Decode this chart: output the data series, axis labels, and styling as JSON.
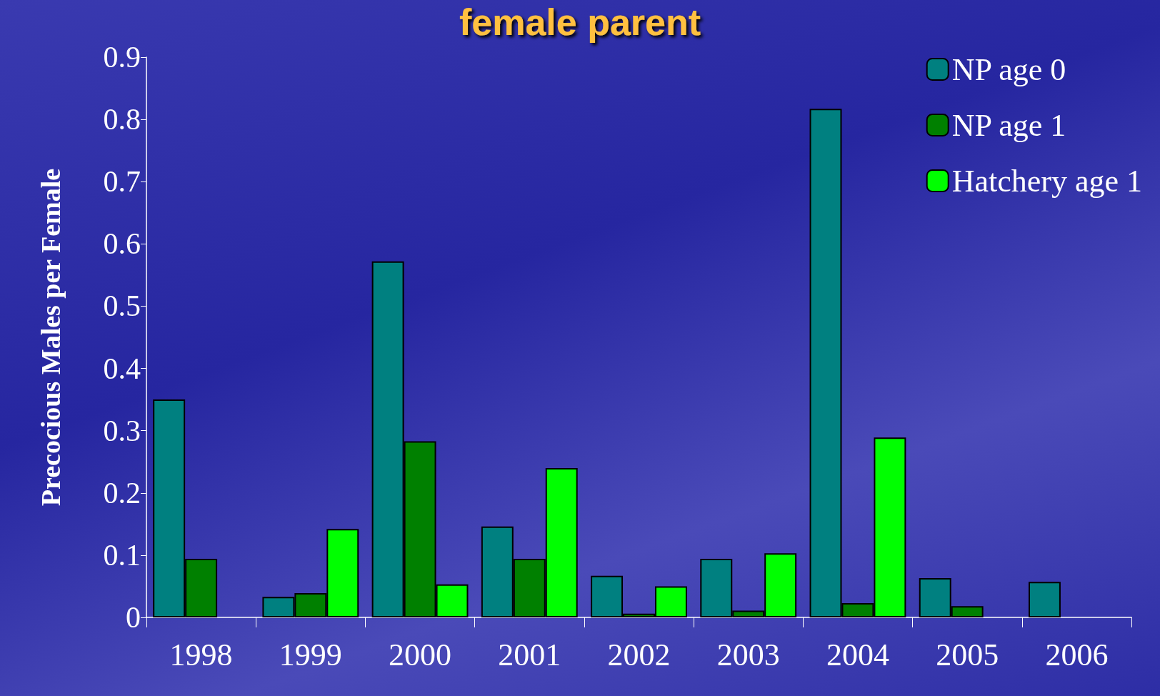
{
  "chart_data": {
    "type": "bar",
    "title": "female parent",
    "ylabel": "Precocious Males per Female",
    "categories": [
      "1998",
      "1999",
      "2000",
      "2001",
      "2002",
      "2003",
      "2004",
      "2005",
      "2006"
    ],
    "series": [
      {
        "name": "NP age 0",
        "color": "#008080",
        "values": [
          0.35,
          0.033,
          0.572,
          0.146,
          0.067,
          0.094,
          0.817,
          0.063,
          0.057
        ]
      },
      {
        "name": "NP age 1",
        "color": "#008000",
        "values": [
          0.094,
          0.039,
          0.283,
          0.094,
          0.006,
          0.011,
          0.023,
          0.018,
          null
        ]
      },
      {
        "name": "Hatchery age 1",
        "color": "#00ff00",
        "values": [
          null,
          0.142,
          0.053,
          0.24,
          0.05,
          0.103,
          0.289,
          null,
          null
        ]
      }
    ],
    "ylim": [
      0,
      0.9
    ],
    "yticks": [
      0,
      0.1,
      0.2,
      0.3,
      0.4,
      0.5,
      0.6,
      0.7,
      0.8,
      0.9
    ],
    "grid": false,
    "legend": "top right"
  }
}
